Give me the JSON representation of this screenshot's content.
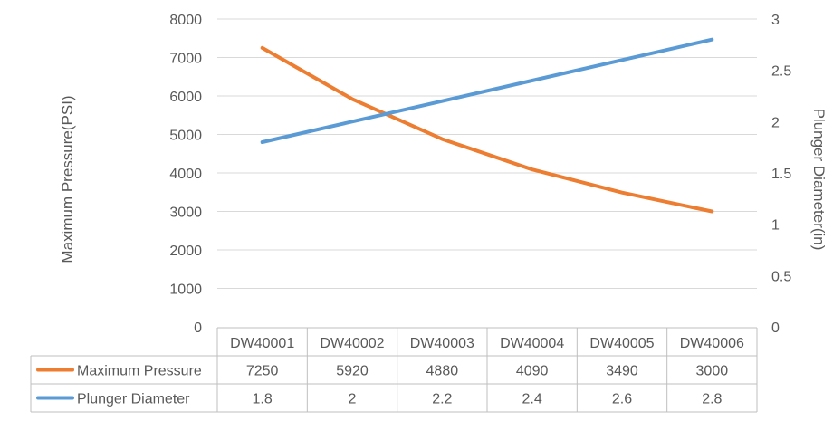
{
  "chart_data": {
    "type": "line",
    "categories": [
      "DW40001",
      "DW40002",
      "DW40003",
      "DW40004",
      "DW40005",
      "DW40006"
    ],
    "series": [
      {
        "name": "Maximum Pressure",
        "axis": "left",
        "color": "#ED7D31",
        "values": [
          7250,
          5920,
          4880,
          4090,
          3490,
          3000
        ]
      },
      {
        "name": "Plunger Diameter",
        "axis": "right",
        "color": "#5B9BD5",
        "values": [
          1.8,
          2,
          2.2,
          2.4,
          2.6,
          2.8
        ]
      }
    ],
    "ylabel": "Maximum Pressure(PSI)",
    "y2label": "Plunger Diameter(in)",
    "ylim": [
      0,
      8000
    ],
    "y2lim": [
      0,
      3
    ],
    "yticks": [
      "0",
      "1000",
      "2000",
      "3000",
      "4000",
      "5000",
      "6000",
      "7000",
      "8000"
    ],
    "y2ticks": [
      "0",
      "0.5",
      "1",
      "1.5",
      "2",
      "2.5",
      "3"
    ],
    "grid": true,
    "data_table": true,
    "table_rows": [
      {
        "label": "Maximum Pressure",
        "values": [
          "7250",
          "5920",
          "4880",
          "4090",
          "3490",
          "3000"
        ]
      },
      {
        "label": "Plunger Diameter",
        "values": [
          "1.8",
          "2",
          "2.2",
          "2.4",
          "2.6",
          "2.8"
        ]
      }
    ]
  }
}
